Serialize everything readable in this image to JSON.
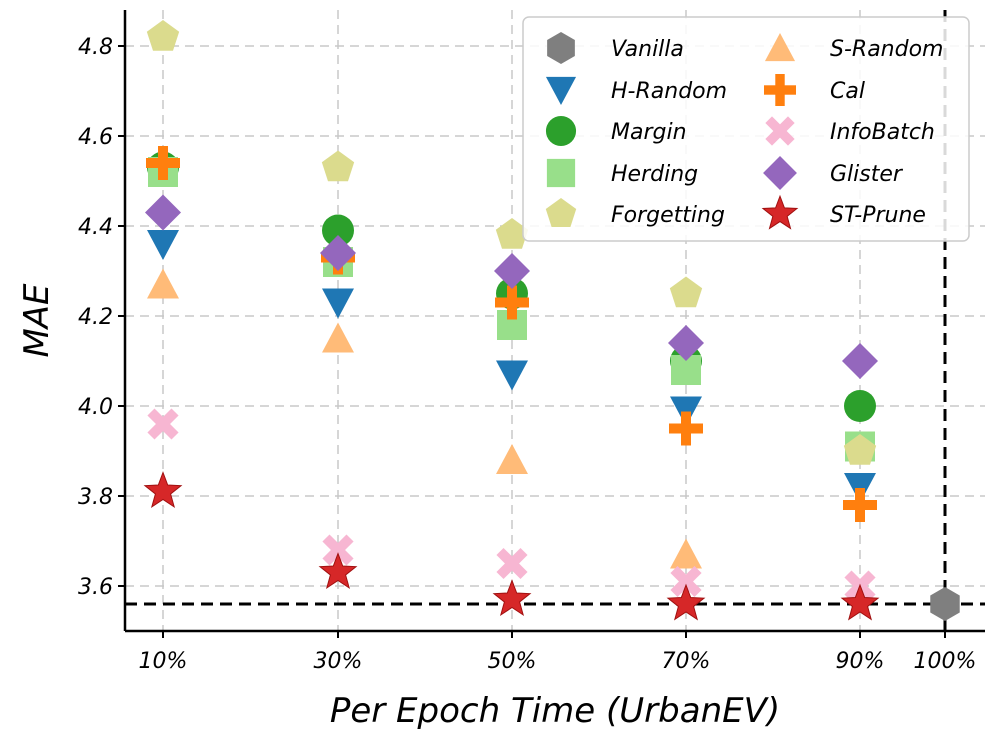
{
  "chart_data": {
    "type": "scatter",
    "title": "",
    "xlabel": "Per Epoch Time (UrbanEV)",
    "ylabel": "MAE",
    "categories": [
      "10%",
      "30%",
      "50%",
      "70%",
      "90%",
      "100%"
    ],
    "ylim": [
      3.5,
      4.88
    ],
    "yticks": [
      3.6,
      3.8,
      4.0,
      4.2,
      4.4,
      4.6,
      4.8
    ],
    "ytick_labels": [
      "3.6",
      "3.8",
      "4.0",
      "4.2",
      "4.4",
      "4.6",
      "4.8"
    ],
    "grid": true,
    "legend_position": "top-right",
    "reference_lines": [
      {
        "orientation": "horizontal",
        "value": 3.56,
        "style": "dashed"
      },
      {
        "orientation": "vertical",
        "category": "100%",
        "style": "dashed"
      }
    ],
    "series": [
      {
        "name": "Vanilla",
        "marker": "hexagon",
        "color": "#7f7f7f",
        "points": [
          {
            "x": "100%",
            "y": 3.56
          }
        ]
      },
      {
        "name": "H-Random",
        "marker": "triangle-down",
        "color": "#1f77b4",
        "points": [
          {
            "x": "10%",
            "y": 4.36
          },
          {
            "x": "30%",
            "y": 4.23
          },
          {
            "x": "50%",
            "y": 4.07
          },
          {
            "x": "70%",
            "y": 3.99
          },
          {
            "x": "90%",
            "y": 3.82
          }
        ]
      },
      {
        "name": "Margin",
        "marker": "circle",
        "color": "#2ca02c",
        "points": [
          {
            "x": "10%",
            "y": 4.53
          },
          {
            "x": "30%",
            "y": 4.39
          },
          {
            "x": "50%",
            "y": 4.25
          },
          {
            "x": "70%",
            "y": 4.1
          },
          {
            "x": "90%",
            "y": 4.0
          }
        ]
      },
      {
        "name": "Herding",
        "marker": "square",
        "color": "#98df8a",
        "points": [
          {
            "x": "10%",
            "y": 4.52
          },
          {
            "x": "30%",
            "y": 4.32
          },
          {
            "x": "50%",
            "y": 4.18
          },
          {
            "x": "70%",
            "y": 4.08
          },
          {
            "x": "90%",
            "y": 3.91
          }
        ]
      },
      {
        "name": "Forgetting",
        "marker": "pentagon",
        "color": "#dbdb8d",
        "points": [
          {
            "x": "10%",
            "y": 4.82
          },
          {
            "x": "30%",
            "y": 4.53
          },
          {
            "x": "50%",
            "y": 4.38
          },
          {
            "x": "70%",
            "y": 4.25
          },
          {
            "x": "90%",
            "y": 3.9
          }
        ]
      },
      {
        "name": "S-Random",
        "marker": "triangle-up",
        "color": "#ffbb78",
        "points": [
          {
            "x": "10%",
            "y": 4.27
          },
          {
            "x": "30%",
            "y": 4.15
          },
          {
            "x": "50%",
            "y": 3.88
          },
          {
            "x": "70%",
            "y": 3.67
          }
        ]
      },
      {
        "name": "Cal",
        "marker": "plus",
        "color": "#ff7f0e",
        "points": [
          {
            "x": "10%",
            "y": 4.54
          },
          {
            "x": "30%",
            "y": 4.33
          },
          {
            "x": "50%",
            "y": 4.23
          },
          {
            "x": "70%",
            "y": 3.95
          },
          {
            "x": "90%",
            "y": 3.78
          }
        ]
      },
      {
        "name": "InfoBatch",
        "marker": "x",
        "color": "#f7b6d2",
        "points": [
          {
            "x": "10%",
            "y": 3.96
          },
          {
            "x": "30%",
            "y": 3.68
          },
          {
            "x": "50%",
            "y": 3.65
          },
          {
            "x": "70%",
            "y": 3.61
          },
          {
            "x": "90%",
            "y": 3.6
          }
        ]
      },
      {
        "name": "Glister",
        "marker": "diamond",
        "color": "#9467bd",
        "points": [
          {
            "x": "10%",
            "y": 4.43
          },
          {
            "x": "30%",
            "y": 4.34
          },
          {
            "x": "50%",
            "y": 4.3
          },
          {
            "x": "70%",
            "y": 4.14
          },
          {
            "x": "90%",
            "y": 4.1
          }
        ]
      },
      {
        "name": "ST-Prune",
        "marker": "star",
        "color": "#d62728",
        "points": [
          {
            "x": "10%",
            "y": 3.81
          },
          {
            "x": "30%",
            "y": 3.63
          },
          {
            "x": "50%",
            "y": 3.57
          },
          {
            "x": "70%",
            "y": 3.56
          },
          {
            "x": "90%",
            "y": 3.56
          }
        ]
      }
    ],
    "legend_order": [
      "Vanilla",
      "H-Random",
      "Margin",
      "Herding",
      "Forgetting",
      "S-Random",
      "Cal",
      "InfoBatch",
      "Glister",
      "ST-Prune"
    ]
  }
}
